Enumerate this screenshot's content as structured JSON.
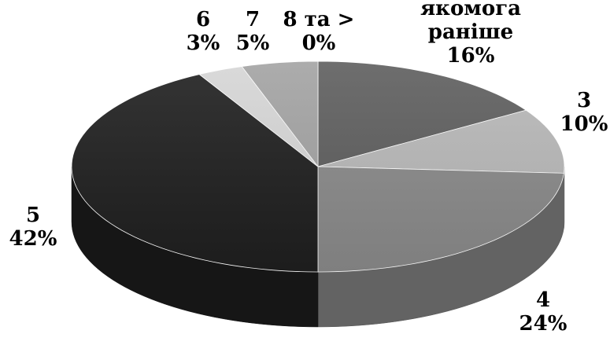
{
  "chart_data": {
    "type": "pie",
    "style": "3d",
    "categories": [
      "якомога раніше",
      "3",
      "4",
      "5",
      "6",
      "7",
      "8 та >"
    ],
    "values": [
      16,
      10,
      24,
      42,
      3,
      5,
      0
    ],
    "label_lines": [
      [
        "якомога",
        "раніше",
        "16%"
      ],
      [
        "3",
        "10%"
      ],
      [
        "4",
        "24%"
      ],
      [
        "5",
        "42%"
      ],
      [
        "6",
        "3%"
      ],
      [
        "7",
        "5%"
      ],
      [
        "8 та >",
        "0%"
      ]
    ],
    "colors": [
      "#5e5e5e",
      "#b8b8b8",
      "#8a8a8a",
      "#1f1f1f",
      "#d6d6d6",
      "#a3a3a3",
      "#7a7a7a"
    ]
  }
}
